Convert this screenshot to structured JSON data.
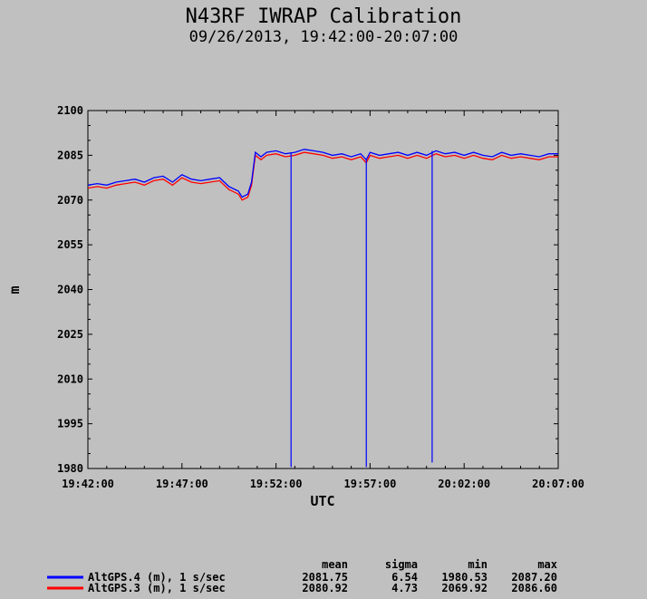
{
  "chart_data": {
    "type": "line",
    "title": "N43RF IWRAP Calibration",
    "subtitle": "09/26/2013, 19:42:00-20:07:00",
    "xlabel": "UTC",
    "ylabel": "m",
    "x_ticks": [
      "19:42:00",
      "19:47:00",
      "19:52:00",
      "19:57:00",
      "20:02:00",
      "20:07:00"
    ],
    "xlim_minutes": [
      0,
      25
    ],
    "ylim": [
      1980,
      2100
    ],
    "y_ticks": [
      2100,
      2085,
      2070,
      2055,
      2040,
      2025,
      2010,
      1995,
      1980
    ],
    "grid": false,
    "series": [
      {
        "name": "AltGPS.4 (m), 1 s/sec",
        "color": "#0000ff",
        "x": [
          0,
          0.5,
          1,
          1.5,
          2,
          2.5,
          3,
          3.5,
          4,
          4.5,
          5,
          5.5,
          6,
          6.5,
          7,
          7.5,
          8,
          8.2,
          8.5,
          8.7,
          8.9,
          9.2,
          9.5,
          10,
          10.5,
          11,
          11.5,
          12,
          12.5,
          13,
          13.5,
          14,
          14.5,
          14.8,
          15,
          15.5,
          16,
          16.5,
          17,
          17.5,
          18,
          18.5,
          19,
          19.5,
          20,
          20.5,
          21,
          21.5,
          22,
          22.5,
          23,
          23.5,
          24,
          24.5,
          25
        ],
        "values": [
          2075,
          2075.5,
          2075,
          2076,
          2076.5,
          2077,
          2076,
          2077.5,
          2078,
          2076,
          2078.5,
          2077,
          2076.5,
          2077,
          2077.5,
          2074.5,
          2073,
          2071,
          2072,
          2076,
          2086,
          2084.5,
          2086,
          2086.5,
          2085.5,
          2086,
          2087,
          2086.5,
          2086,
          2085,
          2085.5,
          2084.5,
          2085.5,
          2083.5,
          2086,
          2085,
          2085.5,
          2086,
          2085,
          2086,
          2085,
          2086.5,
          2085.5,
          2086,
          2085,
          2086,
          2085,
          2084.5,
          2086,
          2085,
          2085.5,
          2085,
          2084.5,
          2085.5,
          2085.5
        ]
      },
      {
        "name": "AltGPS.3 (m), 1 s/sec",
        "color": "#ff0000",
        "x": [
          0,
          0.5,
          1,
          1.5,
          2,
          2.5,
          3,
          3.5,
          4,
          4.5,
          5,
          5.5,
          6,
          6.5,
          7,
          7.5,
          8,
          8.2,
          8.5,
          8.7,
          8.9,
          9.2,
          9.5,
          10,
          10.5,
          11,
          11.5,
          12,
          12.5,
          13,
          13.5,
          14,
          14.5,
          14.8,
          15,
          15.5,
          16,
          16.5,
          17,
          17.5,
          18,
          18.5,
          19,
          19.5,
          20,
          20.5,
          21,
          21.5,
          22,
          22.5,
          23,
          23.5,
          24,
          24.5,
          25
        ],
        "values": [
          2074,
          2074.5,
          2074,
          2075,
          2075.5,
          2076,
          2075,
          2076.5,
          2077,
          2075,
          2077.5,
          2076,
          2075.5,
          2076,
          2076.5,
          2073.5,
          2072,
          2070,
          2071,
          2075,
          2085,
          2083.5,
          2085,
          2085.5,
          2084.5,
          2085,
          2086,
          2085.5,
          2085,
          2084,
          2084.5,
          2083.5,
          2084.5,
          2082.5,
          2085,
          2084,
          2084.5,
          2085,
          2084,
          2085,
          2084,
          2085.5,
          2084.5,
          2085,
          2084,
          2085,
          2084,
          2083.5,
          2085,
          2084,
          2084.5,
          2084,
          2083.5,
          2084.5,
          2084.5
        ]
      }
    ],
    "spikes": [
      {
        "series": 0,
        "x": 10.8,
        "min": 1980.5
      },
      {
        "series": 0,
        "x": 14.8,
        "min": 1980.5
      },
      {
        "series": 0,
        "x": 18.3,
        "min": 1982
      }
    ],
    "stats_headers": [
      "mean",
      "sigma",
      "min",
      "max"
    ],
    "stats": [
      {
        "label": "AltGPS.4 (m), 1 s/sec",
        "color": "#0000ff",
        "mean": "2081.75",
        "sigma": "6.54",
        "min": "1980.53",
        "max": "2087.20"
      },
      {
        "label": "AltGPS.3 (m), 1 s/sec",
        "color": "#ff0000",
        "mean": "2080.92",
        "sigma": "4.73",
        "min": "2069.92",
        "max": "2086.60"
      }
    ]
  }
}
